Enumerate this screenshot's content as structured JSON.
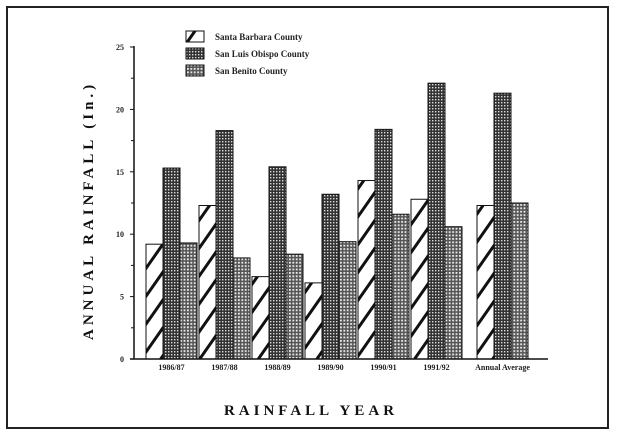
{
  "chart_data": {
    "type": "bar",
    "title": "",
    "xlabel": "RAINFALL YEAR",
    "ylabel": "ANNUAL RAINFALL (In.)",
    "ylim": [
      0,
      25
    ],
    "yticks": [
      0,
      5,
      10,
      15,
      20,
      25
    ],
    "grid": false,
    "legend_position": "top-left",
    "categories": [
      "1986/87",
      "1987/88",
      "1988/89",
      "1989/90",
      "1990/91",
      "1991/92",
      "Annual Average"
    ],
    "series": [
      {
        "name": "Santa Barbara County",
        "pattern": "diagonal-hatch",
        "values": [
          9.2,
          12.3,
          6.6,
          6.1,
          14.3,
          12.8,
          12.3
        ]
      },
      {
        "name": "San Luis Obispo County",
        "pattern": "dense-crosshatch",
        "values": [
          15.3,
          18.3,
          15.4,
          13.2,
          18.4,
          22.1,
          21.3
        ]
      },
      {
        "name": "San Benito County",
        "pattern": "light-crosshatch",
        "values": [
          9.3,
          8.1,
          8.4,
          9.4,
          11.6,
          10.6,
          12.5
        ]
      }
    ]
  }
}
